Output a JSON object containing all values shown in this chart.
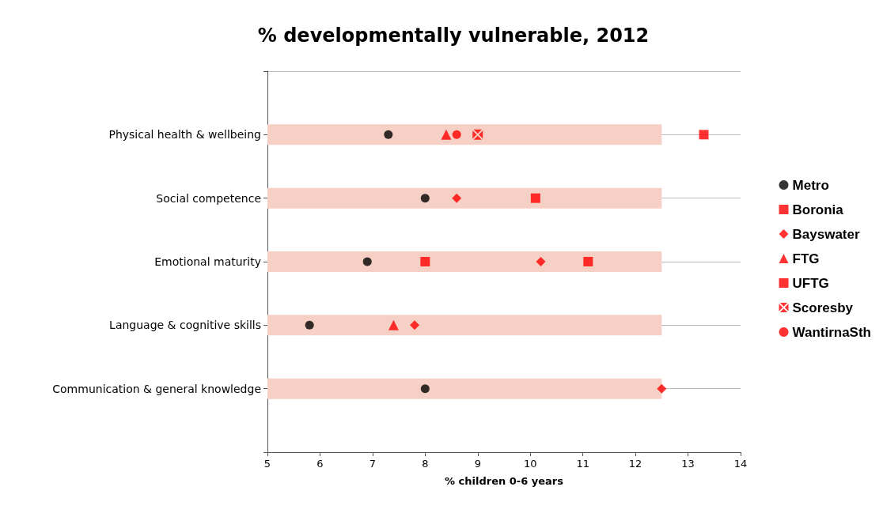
{
  "chart_data": {
    "type": "scatter",
    "title": "% developmentally vulnerable, 2012",
    "xlabel": "% children 0-6 years",
    "categories": [
      "Physical health & wellbeing",
      "Social competence",
      "Emotional maturity",
      "Language & cognitive skills",
      "Communication & general knowledge"
    ],
    "orientation": "horizontal",
    "xlim": [
      5,
      14
    ],
    "xticks": [
      5,
      6,
      7,
      8,
      9,
      10,
      11,
      12,
      13,
      14
    ],
    "grid": "y",
    "legend": "right",
    "series": [
      {
        "type": "bar",
        "color": "#f6d0c4",
        "values": [
          12.5,
          12.5,
          12.5,
          12.5,
          12.5
        ]
      },
      {
        "name": "Metro",
        "color": "#000000",
        "marker": "circle",
        "values": [
          7.3,
          8.0,
          6.9,
          5.8,
          8.0
        ]
      },
      {
        "name": "Boronia",
        "color": "#ff0000",
        "marker": "square",
        "values": [
          null,
          10.1,
          8.0,
          null,
          null
        ]
      },
      {
        "name": "Bayswater",
        "color": "#ff0000",
        "marker": "diamond",
        "values": [
          null,
          8.6,
          10.2,
          7.8,
          12.5
        ]
      },
      {
        "name": "FTG",
        "color": "#ff0000",
        "marker": "triangle",
        "values": [
          8.4,
          null,
          null,
          7.4,
          null
        ]
      },
      {
        "name": "UFTG",
        "color": "#ff0000",
        "marker": "square",
        "values": [
          13.3,
          null,
          11.1,
          null,
          null
        ]
      },
      {
        "name": "Scoresby",
        "color": "#ff0000",
        "marker": "cross",
        "values": [
          9.0,
          null,
          null,
          null,
          null
        ]
      },
      {
        "name": "WantirnaSth",
        "color": "#ff0000",
        "marker": "circle",
        "values": [
          8.6,
          null,
          null,
          null,
          null
        ]
      }
    ]
  }
}
